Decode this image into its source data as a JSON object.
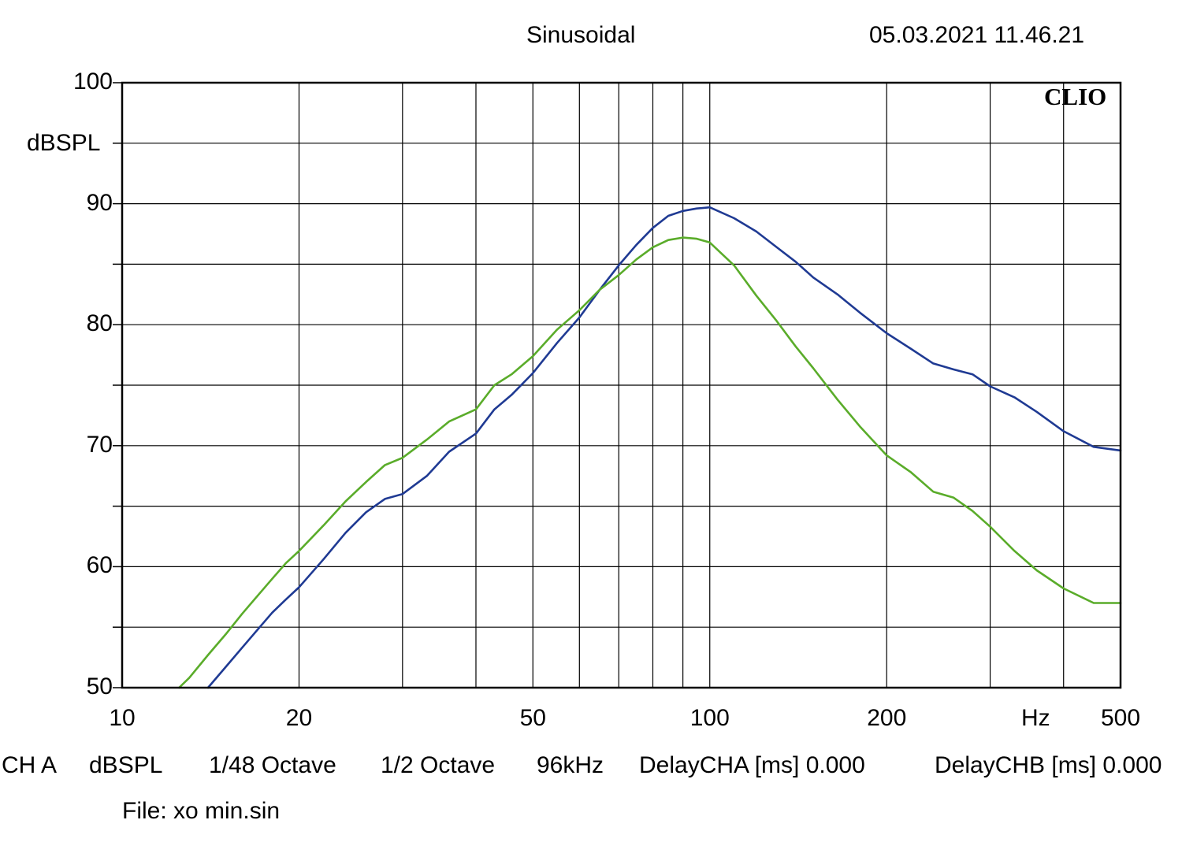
{
  "header": {
    "mode": "Sinusoidal",
    "timestamp": "05.03.2021 11.46.21",
    "brand": "CLIO"
  },
  "footer": {
    "channel": "CH A",
    "unit": "dBSPL",
    "resolution": "1/48 Octave",
    "smoothing": "1/2 Octave",
    "sample_rate": "96kHz",
    "delay_a": "DelayCHA [ms] 0.000",
    "delay_b": "DelayCHB [ms] 0.000",
    "file": "File: xo min.sin"
  },
  "colors": {
    "blue_curve": "#1f3a93",
    "green_curve": "#5aac2a",
    "grid": "#000000"
  },
  "chart_data": {
    "type": "line",
    "title": "Sinusoidal",
    "xlabel": "Hz",
    "ylabel": "dBSPL",
    "x_scale": "log",
    "xlim": [
      10,
      500
    ],
    "ylim": [
      50,
      100
    ],
    "grid": true,
    "x_tick_labels": [
      "10",
      "20",
      "50",
      "100",
      "200",
      "500"
    ],
    "y_tick_labels": [
      "50",
      "60",
      "70",
      "80",
      "90",
      "100"
    ],
    "series": [
      {
        "color": "#1f3a93",
        "x": [
          14,
          15,
          16,
          17,
          18,
          19,
          20,
          22,
          24,
          26,
          28,
          30,
          33,
          36,
          40,
          43,
          46,
          50,
          55,
          60,
          65,
          70,
          75,
          80,
          85,
          90,
          95,
          100,
          110,
          120,
          130,
          140,
          150,
          165,
          180,
          200,
          220,
          240,
          260,
          280,
          300,
          330,
          360,
          400,
          450,
          500
        ],
        "y": [
          50,
          51.7,
          53.3,
          54.8,
          56.2,
          57.3,
          58.3,
          60.6,
          62.8,
          64.5,
          65.6,
          66.0,
          67.5,
          69.5,
          71.0,
          73.0,
          74.2,
          76.0,
          78.5,
          80.6,
          82.9,
          84.9,
          86.6,
          88.0,
          89.0,
          89.4,
          89.6,
          89.7,
          88.8,
          87.7,
          86.4,
          85.2,
          83.9,
          82.5,
          81.0,
          79.3,
          78.0,
          76.8,
          76.3,
          75.9,
          74.9,
          74.0,
          72.8,
          71.2,
          69.9,
          69.6
        ]
      },
      {
        "color": "#5aac2a",
        "x": [
          12.5,
          13,
          14,
          15,
          16,
          17,
          18,
          19,
          20,
          22,
          24,
          26,
          28,
          30,
          33,
          36,
          40,
          43,
          46,
          50,
          55,
          60,
          65,
          70,
          75,
          80,
          85,
          90,
          95,
          100,
          110,
          120,
          130,
          140,
          150,
          165,
          180,
          200,
          220,
          240,
          260,
          280,
          300,
          330,
          360,
          400,
          450,
          500
        ],
        "y": [
          50,
          50.8,
          52.7,
          54.4,
          56.1,
          57.6,
          59.0,
          60.3,
          61.3,
          63.4,
          65.4,
          67.0,
          68.4,
          69.0,
          70.5,
          72.0,
          73.0,
          75.0,
          75.9,
          77.4,
          79.6,
          81.2,
          82.9,
          84.1,
          85.4,
          86.4,
          87.0,
          87.2,
          87.1,
          86.8,
          84.9,
          82.4,
          80.3,
          78.2,
          76.4,
          73.8,
          71.6,
          69.2,
          67.8,
          66.2,
          65.7,
          64.6,
          63.3,
          61.3,
          59.7,
          58.2,
          57.0,
          57.0
        ]
      }
    ]
  }
}
